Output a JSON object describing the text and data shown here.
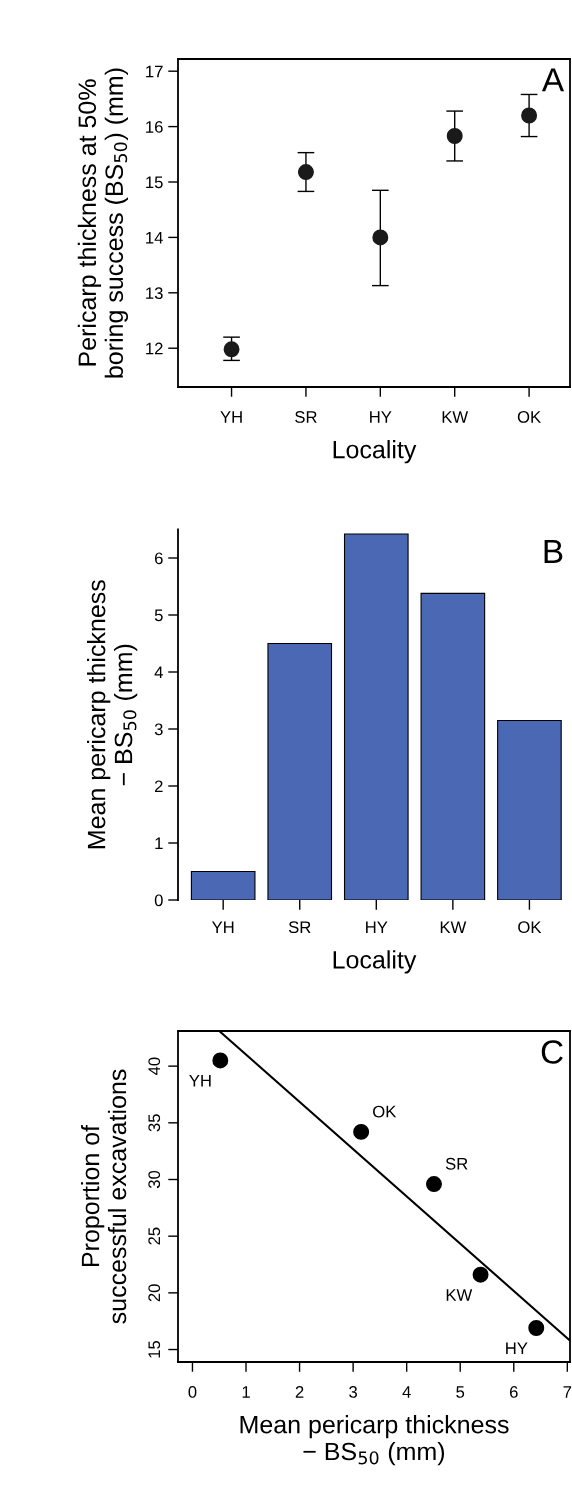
{
  "chart_data": [
    {
      "type": "scatter",
      "categories": [
        "YH",
        "SR",
        "HY",
        "KW",
        "OK"
      ],
      "values": [
        11.98,
        15.18,
        14.0,
        15.83,
        16.2
      ],
      "errors": [
        [
          11.78,
          12.2
        ],
        [
          14.83,
          15.53
        ],
        [
          13.13,
          14.85
        ],
        [
          15.38,
          16.28
        ],
        [
          15.82,
          16.58
        ]
      ],
      "color": "#1a1a1a",
      "marker": "circle",
      "ylim": [
        11.3,
        17.22
      ],
      "yticks": [
        12,
        13,
        14,
        15,
        16,
        17
      ],
      "grid": false,
      "xlabel": "Locality",
      "ylabel": "Pericarp thickness at 50%\nboring success (BS$_{50}$) (mm)",
      "annotations": [
        "A"
      ]
    },
    {
      "type": "bar",
      "categories": [
        "YH",
        "SR",
        "HY",
        "KW",
        "OK"
      ],
      "values": [
        0.5,
        4.5,
        6.42,
        5.38,
        3.15
      ],
      "color": "#4a68b4",
      "ylim": [
        0,
        6.5
      ],
      "yticks": [
        0,
        1,
        2,
        3,
        4,
        5,
        6
      ],
      "grid": false,
      "xlabel": "Locality",
      "ylabel": "Mean pericarp thickness\n− BS$_{50}$ (mm)",
      "annotations": [
        "B"
      ]
    },
    {
      "type": "scatter",
      "xlim": [
        -0.27,
        7.05
      ],
      "xticks": [
        0,
        1,
        2,
        3,
        4,
        5,
        6,
        7
      ],
      "ylim": [
        13.9,
        43.1
      ],
      "yticks": [
        15,
        20,
        25,
        30,
        35,
        40
      ],
      "grid": false,
      "series": [
        {
          "type": "scatter",
          "x": [
            0.52,
            3.15,
            4.51,
            5.38,
            6.42
          ],
          "values": [
            40.5,
            34.2,
            29.6,
            21.6,
            16.9
          ],
          "color": "#000000",
          "marker": "circle"
        },
        {
          "type": "line",
          "x": [
            0.5,
            7.05
          ],
          "values": [
            43.1,
            15.79
          ],
          "color": "#000000"
        }
      ],
      "xlabel": "Mean pericarp thickness\n− BS$_{50}$ (mm)",
      "ylabel": "Proportion of\nsuccessful excavations",
      "annotations": [
        "C",
        {
          "text": "YH",
          "x": 0.52,
          "y": 40.5
        },
        {
          "text": "OK",
          "x": 3.15,
          "y": 34.2
        },
        {
          "text": "SR",
          "x": 4.51,
          "y": 29.6
        },
        {
          "text": "KW",
          "x": 5.38,
          "y": 21.6
        },
        {
          "text": "HY",
          "x": 6.42,
          "y": 16.9
        }
      ]
    }
  ]
}
